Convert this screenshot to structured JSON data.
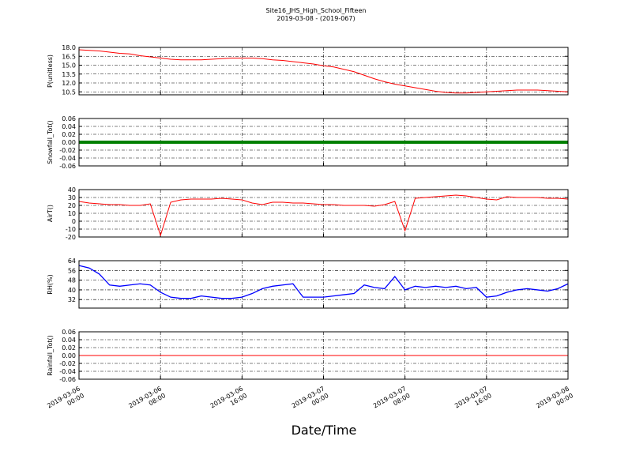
{
  "chart_data": {
    "type": "line",
    "title": "Site16_JHS_High_School_Fifteen",
    "subtitle": "2019-03-08 - (2019-067)",
    "xlabel": "Date/Time",
    "grid": true,
    "xlim": [
      "2019-03-06 00:00",
      "2019-03-08 00:00"
    ],
    "xticks": [
      "2019-03-06 00:00",
      "2019-03-06 08:00",
      "2019-03-06 16:00",
      "2019-03-07 00:00",
      "2019-03-07 08:00",
      "2019-03-07 16:00",
      "2019-03-08 00:00"
    ],
    "x": [
      "2019-03-06 00:00",
      "2019-03-06 01:00",
      "2019-03-06 02:00",
      "2019-03-06 03:00",
      "2019-03-06 04:00",
      "2019-03-06 05:00",
      "2019-03-06 06:00",
      "2019-03-06 07:00",
      "2019-03-06 08:00",
      "2019-03-06 09:00",
      "2019-03-06 10:00",
      "2019-03-06 11:00",
      "2019-03-06 12:00",
      "2019-03-06 13:00",
      "2019-03-06 14:00",
      "2019-03-06 15:00",
      "2019-03-06 16:00",
      "2019-03-06 17:00",
      "2019-03-06 18:00",
      "2019-03-06 19:00",
      "2019-03-06 20:00",
      "2019-03-06 21:00",
      "2019-03-06 22:00",
      "2019-03-06 23:00",
      "2019-03-07 00:00",
      "2019-03-07 01:00",
      "2019-03-07 02:00",
      "2019-03-07 03:00",
      "2019-03-07 04:00",
      "2019-03-07 05:00",
      "2019-03-07 06:00",
      "2019-03-07 07:00",
      "2019-03-07 08:00",
      "2019-03-07 09:00",
      "2019-03-07 10:00",
      "2019-03-07 11:00",
      "2019-03-07 12:00",
      "2019-03-07 13:00",
      "2019-03-07 14:00",
      "2019-03-07 15:00",
      "2019-03-07 16:00",
      "2019-03-07 17:00",
      "2019-03-07 18:00",
      "2019-03-07 19:00",
      "2019-03-07 20:00",
      "2019-03-07 21:00",
      "2019-03-07 22:00",
      "2019-03-07 23:00",
      "2019-03-08 00:00"
    ],
    "series": [
      {
        "name": "P(unitless)",
        "color": "#ff0000",
        "width": 1,
        "ylim": [
          10,
          18
        ],
        "yticks": [
          10.5,
          {
            "value": 12,
            "label": "12.0"
          },
          13.5,
          {
            "value": 15,
            "label": "15.0"
          },
          16.5,
          {
            "value": 18,
            "label": "18.0"
          }
        ],
        "values": [
          17.6,
          17.5,
          17.4,
          17.2,
          17.0,
          16.9,
          16.6,
          16.4,
          16.2,
          16.0,
          15.9,
          15.9,
          15.9,
          16.0,
          16.1,
          16.2,
          16.2,
          16.2,
          16.1,
          15.9,
          15.8,
          15.6,
          15.4,
          15.2,
          14.9,
          14.7,
          14.3,
          13.9,
          13.3,
          12.7,
          12.2,
          11.8,
          11.5,
          11.2,
          10.9,
          10.6,
          10.4,
          10.3,
          10.3,
          10.4,
          10.5,
          10.6,
          10.7,
          10.8,
          10.8,
          10.8,
          10.7,
          10.6,
          10.5
        ]
      },
      {
        "name": "Snowfall_Tot()",
        "color": "#008000",
        "width": 4,
        "ylim": [
          -0.06,
          0.06
        ],
        "yticks": [
          {
            "value": -0.06,
            "label": "-0.06"
          },
          {
            "value": -0.04,
            "label": "-0.04"
          },
          {
            "value": -0.02,
            "label": "-0.02"
          },
          {
            "value": 0,
            "label": "0.00"
          },
          0.02,
          0.04,
          0.06
        ],
        "values": [
          0,
          0,
          0,
          0,
          0,
          0,
          0,
          0,
          0,
          0,
          0,
          0,
          0,
          0,
          0,
          0,
          0,
          0,
          0,
          0,
          0,
          0,
          0,
          0,
          0,
          0,
          0,
          0,
          0,
          0,
          0,
          0,
          0,
          0,
          0,
          0,
          0,
          0,
          0,
          0,
          0,
          0,
          0,
          0,
          0,
          0,
          0,
          0,
          0
        ]
      },
      {
        "name": "AirT()",
        "color": "#ff0000",
        "width": 1,
        "ylim": [
          -20,
          40
        ],
        "yticks": [
          -20,
          -10,
          0,
          10,
          20,
          30,
          40
        ],
        "values": [
          25,
          23,
          22,
          21,
          21,
          20,
          20,
          22,
          -18,
          24,
          27,
          28,
          28,
          28,
          29,
          28,
          27,
          23,
          21,
          24,
          24,
          23,
          23,
          22,
          21,
          21,
          20,
          20,
          20,
          19,
          21,
          25,
          -12,
          29,
          30,
          31,
          32,
          33,
          32,
          30,
          28,
          27,
          31,
          30,
          30,
          30,
          29,
          29,
          28
        ]
      },
      {
        "name": "RH(%)",
        "color": "#0000ff",
        "width": 1.3,
        "ylim": [
          25,
          64
        ],
        "yticks": [
          32,
          40,
          48,
          56,
          64
        ],
        "values": [
          60,
          58,
          53,
          44,
          43,
          44,
          45,
          44,
          38,
          34,
          33,
          33,
          35,
          34,
          33,
          33,
          34,
          37,
          41,
          43,
          44,
          45,
          34,
          34,
          34,
          35,
          36,
          37,
          44,
          42,
          41,
          51,
          40,
          43,
          42,
          43,
          42,
          43,
          41,
          42,
          34,
          35,
          38,
          40,
          41,
          40,
          39,
          41,
          45
        ]
      },
      {
        "name": "Rainfall_Tot()",
        "color": "#ff0000",
        "width": 1,
        "ylim": [
          -0.06,
          0.06
        ],
        "yticks": [
          {
            "value": -0.06,
            "label": "-0.06"
          },
          {
            "value": -0.04,
            "label": "-0.04"
          },
          {
            "value": -0.02,
            "label": "-0.02"
          },
          {
            "value": 0,
            "label": "0.00"
          },
          0.02,
          0.04,
          0.06
        ],
        "values": [
          0,
          0,
          0,
          0,
          0,
          0,
          0,
          0,
          0,
          0,
          0,
          0,
          0,
          0,
          0,
          0,
          0,
          0,
          0,
          0,
          0,
          0,
          0,
          0,
          0,
          0,
          0,
          0,
          0,
          0,
          0,
          0,
          0,
          0,
          0,
          0,
          0,
          0,
          0,
          0,
          0,
          0,
          0,
          0,
          0,
          0,
          0,
          0,
          0
        ]
      }
    ]
  }
}
